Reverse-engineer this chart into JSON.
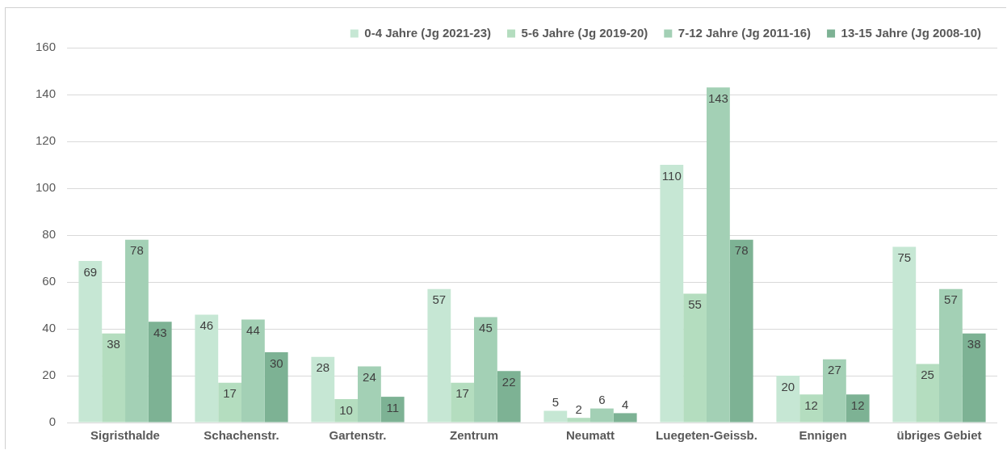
{
  "chart_data": {
    "type": "bar",
    "categories": [
      "Sigristhalde",
      "Schachenstr.",
      "Gartenstr.",
      "Zentrum",
      "Neumatt",
      "Luegeten-Geissb.",
      "Ennigen",
      "übriges Gebiet"
    ],
    "series": [
      {
        "name": "0-4 Jahre (Jg 2021-23)",
        "color": "#c6e7d4",
        "values": [
          69,
          46,
          28,
          57,
          5,
          110,
          20,
          75
        ]
      },
      {
        "name": "5-6 Jahre (Jg 2019-20)",
        "color": "#b4ddbf",
        "values": [
          38,
          17,
          10,
          17,
          2,
          55,
          12,
          25
        ]
      },
      {
        "name": "7-12 Jahre (Jg 2011-16)",
        "color": "#a3d0b5",
        "values": [
          78,
          44,
          24,
          45,
          6,
          143,
          27,
          57
        ]
      },
      {
        "name": "13-15 Jahre (Jg 2008-10)",
        "color": "#7db294",
        "values": [
          43,
          30,
          11,
          22,
          4,
          78,
          12,
          38
        ]
      }
    ],
    "ylim": [
      0,
      160
    ],
    "yticks": [
      0,
      20,
      40,
      60,
      80,
      100,
      120,
      140,
      160
    ],
    "grid": "y",
    "legend": "top right",
    "data_labels": true
  }
}
